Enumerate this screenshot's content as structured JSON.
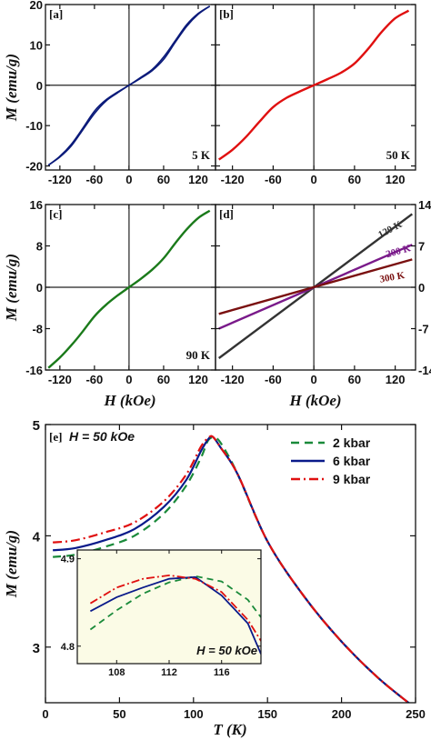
{
  "chart_data": [
    {
      "panel": "[a]",
      "type": "line",
      "temperature_label": "5 K",
      "xlabel": "",
      "ylabel": "M (emu/g)",
      "xlim": [
        -145,
        150
      ],
      "ylim": [
        -21,
        20
      ],
      "xticks": [
        -120,
        -60,
        0,
        60,
        120
      ],
      "xtick_labels": [
        "-120",
        "-60",
        "0",
        "60",
        "120"
      ],
      "yticks": [
        -20,
        -10,
        0,
        10,
        20
      ],
      "ytick_labels": [
        "-20",
        "-10",
        "0",
        "10",
        "20"
      ],
      "series": [
        {
          "color": "#0a1a7a",
          "x": [
            -140,
            -120,
            -100,
            -80,
            -60,
            -40,
            -20,
            0,
            20,
            40,
            60,
            80,
            100,
            120,
            140
          ],
          "y": [
            -19.8,
            -17.6,
            -14.6,
            -10.6,
            -6.4,
            -3.6,
            -1.7,
            0.0,
            1.9,
            3.9,
            7.0,
            11.0,
            15.0,
            17.8,
            19.6
          ]
        },
        {
          "color": "#0a1a7a",
          "x": [
            -140,
            -120,
            -100,
            -80,
            -60,
            -40,
            -20,
            0,
            20,
            40,
            60,
            80,
            100,
            120,
            140
          ],
          "y": [
            -19.8,
            -17.8,
            -15.0,
            -11.0,
            -7.0,
            -3.9,
            -1.9,
            0.0,
            1.7,
            3.6,
            6.4,
            10.6,
            14.6,
            17.6,
            19.6
          ]
        }
      ]
    },
    {
      "panel": "[b]",
      "type": "line",
      "temperature_label": "50 K",
      "xlabel": "",
      "ylabel": "",
      "xlim": [
        -145,
        150
      ],
      "ylim": [
        -21,
        20
      ],
      "xticks": [
        -120,
        -60,
        0,
        60,
        120
      ],
      "xtick_labels": [
        "-120",
        "-60",
        "0",
        "60",
        "120"
      ],
      "yticks": [
        -20,
        -10,
        0,
        10,
        20
      ],
      "ytick_labels": [],
      "series": [
        {
          "color": "#e01010",
          "x": [
            -140,
            -120,
            -100,
            -80,
            -60,
            -40,
            -20,
            0,
            20,
            40,
            60,
            80,
            100,
            120,
            140
          ],
          "y": [
            -18.4,
            -16.0,
            -12.8,
            -9.0,
            -5.4,
            -3.1,
            -1.5,
            0.0,
            1.5,
            3.1,
            5.4,
            9.0,
            13.2,
            16.6,
            18.5
          ]
        }
      ]
    },
    {
      "panel": "[c]",
      "type": "line",
      "temperature_label": "90 K",
      "xlabel": "H (kOe)",
      "ylabel": "M (emu/g)",
      "xlim": [
        -145,
        150
      ],
      "ylim": [
        -16,
        16
      ],
      "xticks": [
        -120,
        -60,
        0,
        60,
        120
      ],
      "xtick_labels": [
        "-120",
        "-60",
        "0",
        "60",
        "120"
      ],
      "yticks": [
        -16,
        -8,
        0,
        8,
        16
      ],
      "ytick_labels": [
        "-16",
        "-8",
        "0",
        "8",
        "16"
      ],
      "series": [
        {
          "color": "#1a7a1a",
          "x": [
            -140,
            -120,
            -100,
            -80,
            -60,
            -40,
            -20,
            0,
            20,
            40,
            60,
            80,
            100,
            120,
            140
          ],
          "y": [
            -15.6,
            -13.6,
            -11.2,
            -8.5,
            -5.6,
            -3.4,
            -1.6,
            0.0,
            1.6,
            3.4,
            5.6,
            8.5,
            11.2,
            13.4,
            14.8
          ]
        }
      ]
    },
    {
      "panel": "[d]",
      "type": "line",
      "xlabel": "H (kOe)",
      "ylabel": "",
      "xlim": [
        -145,
        150
      ],
      "ylim": [
        -14,
        14
      ],
      "xticks": [
        -120,
        -60,
        0,
        60,
        120
      ],
      "xtick_labels": [
        "-120",
        "-60",
        "0",
        "60",
        "120"
      ],
      "yticks": [
        -14,
        -7,
        0,
        7,
        14
      ],
      "ytick_labels": [
        "-14",
        "-7",
        "0",
        "7",
        "14"
      ],
      "series": [
        {
          "name": "120 K",
          "color": "#333333",
          "x": [
            -140,
            145
          ],
          "y": [
            -12.0,
            12.4
          ]
        },
        {
          "name": "200 K",
          "color": "#7a1a8a",
          "x": [
            -140,
            145
          ],
          "y": [
            -7.0,
            7.2
          ]
        },
        {
          "name": "300 K",
          "color": "#7a1010",
          "x": [
            -140,
            145
          ],
          "y": [
            -4.5,
            4.7
          ]
        }
      ]
    },
    {
      "panel": "[e]",
      "type": "line",
      "annotation": "H = 50 kOe",
      "xlabel": "T (K)",
      "ylabel": "M (emu/g)",
      "xlim": [
        0,
        250
      ],
      "ylim": [
        2.5,
        5.0
      ],
      "xticks": [
        0,
        50,
        100,
        150,
        200,
        250
      ],
      "xtick_labels": [
        "0",
        "50",
        "100",
        "150",
        "200",
        "250"
      ],
      "yticks": [
        3,
        4,
        5
      ],
      "ytick_labels": [
        "3",
        "4",
        "5"
      ],
      "legend": "top-right",
      "series": [
        {
          "name": "2 kbar",
          "color": "#1a8a3a",
          "dash": "9 6",
          "x": [
            5,
            20,
            40,
            60,
            80,
            95,
            105,
            110,
            115,
            120,
            130,
            150,
            175,
            200,
            225,
            250
          ],
          "y": [
            3.81,
            3.83,
            3.9,
            4.0,
            4.2,
            4.45,
            4.7,
            4.86,
            4.88,
            4.8,
            4.55,
            3.95,
            3.45,
            3.05,
            2.72,
            2.45
          ]
        },
        {
          "name": "6 kbar",
          "color": "#0a1a8a",
          "dash": "",
          "x": [
            5,
            20,
            40,
            60,
            80,
            95,
            105,
            110,
            113,
            118,
            130,
            150,
            175,
            200,
            225,
            250
          ],
          "y": [
            3.87,
            3.89,
            3.96,
            4.06,
            4.26,
            4.5,
            4.76,
            4.87,
            4.89,
            4.8,
            4.55,
            3.95,
            3.45,
            3.05,
            2.72,
            2.45
          ]
        },
        {
          "name": "9 kbar",
          "color": "#e01010",
          "dash": "10 4 2 4",
          "x": [
            5,
            20,
            40,
            60,
            80,
            95,
            105,
            110,
            113,
            118,
            130,
            150,
            175,
            200,
            225,
            250
          ],
          "y": [
            3.94,
            3.96,
            4.03,
            4.12,
            4.31,
            4.55,
            4.8,
            4.88,
            4.89,
            4.8,
            4.55,
            3.95,
            3.45,
            3.05,
            2.72,
            2.45
          ]
        }
      ],
      "inset": {
        "annotation": "H = 50 kOe",
        "xlim": [
          105,
          119
        ],
        "ylim": [
          4.78,
          4.91
        ],
        "xticks": [
          108,
          112,
          116
        ],
        "xtick_labels": [
          "108",
          "112",
          "116"
        ],
        "yticks": [
          4.8,
          4.9
        ],
        "ytick_labels": [
          "4.8",
          "4.9"
        ],
        "background": "#fbfbe6",
        "series": [
          {
            "name": "2 kbar",
            "color": "#1a8a3a",
            "dash": "7 5",
            "x": [
              106,
              108,
              110,
              112,
              114,
              116,
              118,
              119
            ],
            "y": [
              4.819,
              4.841,
              4.86,
              4.873,
              4.88,
              4.874,
              4.853,
              4.833
            ]
          },
          {
            "name": "6 kbar",
            "color": "#0a1a8a",
            "dash": "",
            "x": [
              106,
              108,
              110,
              112,
              114,
              116,
              118,
              119
            ],
            "y": [
              4.84,
              4.856,
              4.867,
              4.877,
              4.879,
              4.858,
              4.826,
              4.791
            ]
          },
          {
            "name": "9 kbar",
            "color": "#e01010",
            "dash": "9 3 2 3",
            "x": [
              106,
              108,
              110,
              112,
              114,
              116,
              118,
              119
            ],
            "y": [
              4.849,
              4.867,
              4.877,
              4.881,
              4.877,
              4.862,
              4.83,
              4.806
            ]
          }
        ]
      }
    }
  ]
}
